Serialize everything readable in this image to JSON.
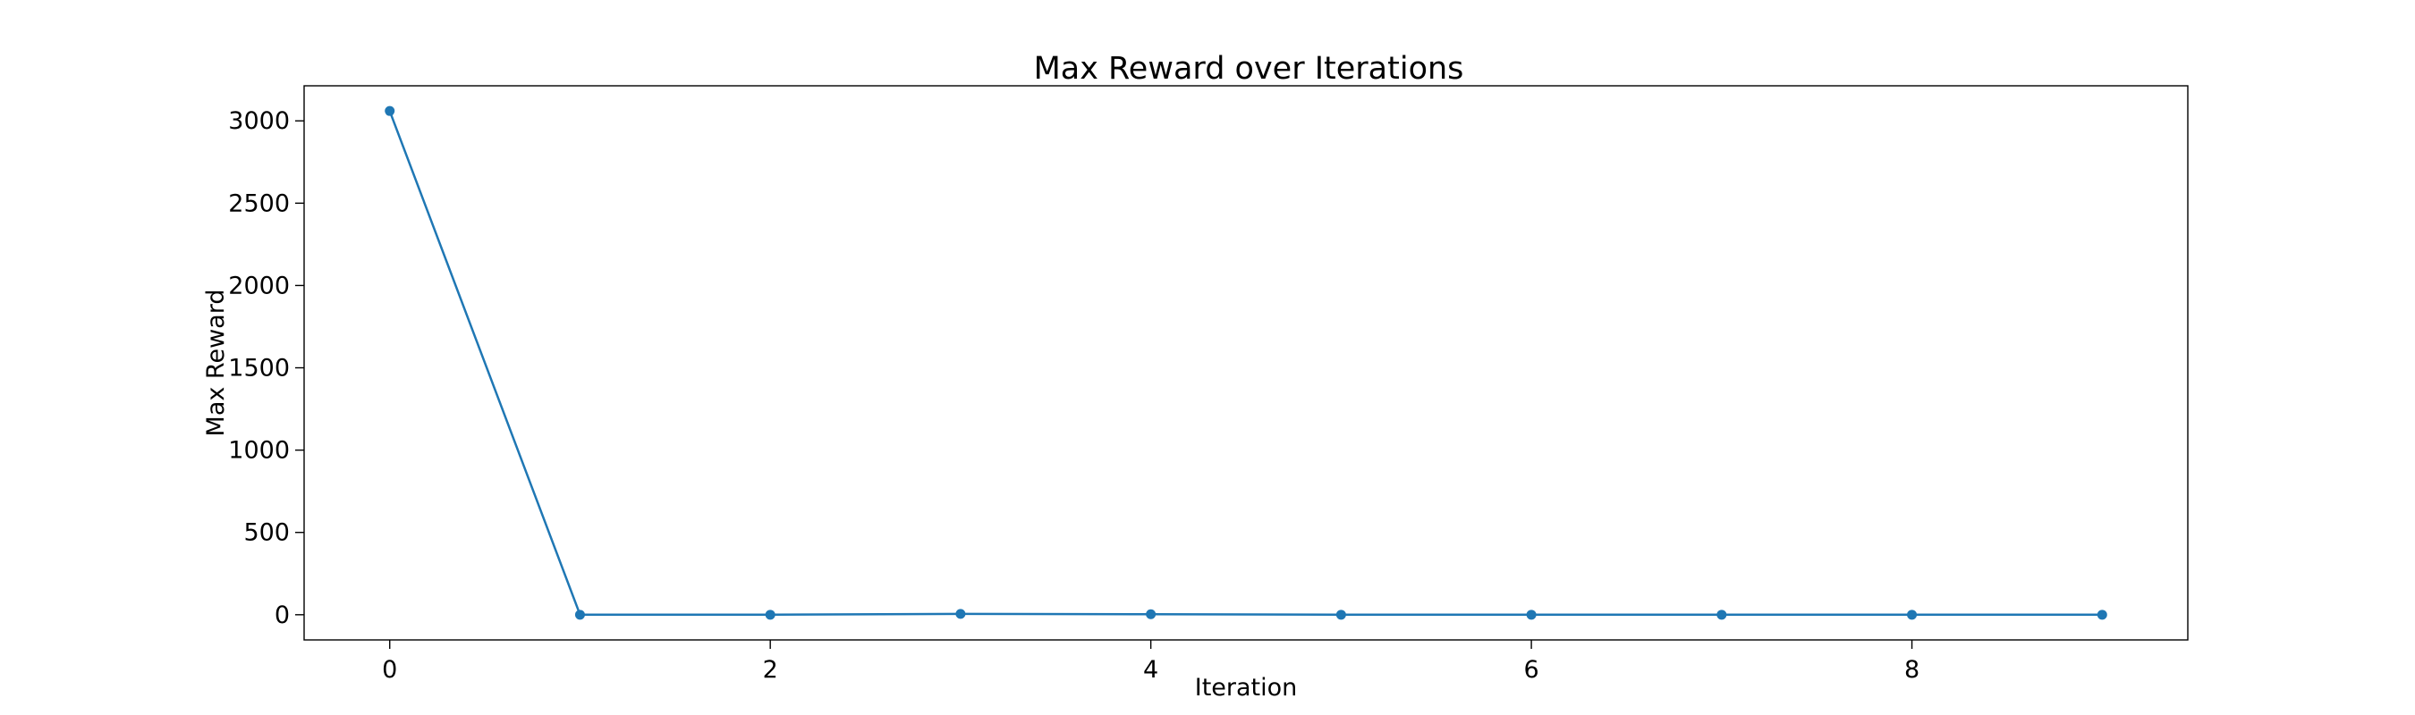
{
  "chart_data": {
    "type": "line",
    "title": "Max Reward over Iterations",
    "xlabel": "Iteration",
    "ylabel": "Max Reward",
    "x": [
      0,
      1,
      2,
      3,
      4,
      5,
      6,
      7,
      8,
      9
    ],
    "series": [
      {
        "values": [
          3060,
          0,
          0,
          5,
          3,
          0,
          0,
          0,
          0,
          0
        ],
        "color": "#1f77b4",
        "marker": "circle"
      }
    ],
    "xlim": [
      -0.45,
      9.45
    ],
    "ylim": [
      -153,
      3213
    ],
    "xticks": [
      0,
      2,
      4,
      6,
      8
    ],
    "yticks": [
      0,
      500,
      1000,
      1500,
      2000,
      2500,
      3000
    ],
    "grid": false,
    "legend": "none"
  }
}
